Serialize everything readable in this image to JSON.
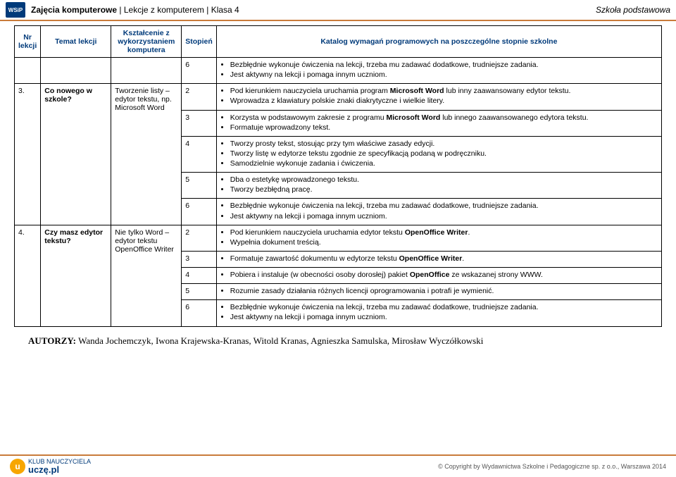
{
  "header": {
    "logo_text": "WSiP",
    "left_bold": "Zajęcia komputerowe",
    "sep": " | ",
    "mid": "Lekcje z komputerem",
    "right_part": "Klasa 4",
    "school": "Szkoła podstawowa"
  },
  "table": {
    "headers": {
      "nr": "Nr lekcji",
      "temat": "Temat lekcji",
      "kszt": "Kształcenie z wykorzystaniem komputera",
      "stopien": "Stopień",
      "katalog": "Katalog wymagań programowych na poszczególne stopnie szkolne"
    },
    "rows": [
      {
        "nr": "",
        "temat": "",
        "kszt": "",
        "levels": [
          {
            "stop": "6",
            "items": [
              "Bezbłędnie wykonuje ćwiczenia na lekcji, trzeba mu zadawać dodatkowe, trudniejsze zadania.",
              "Jest aktywny na lekcji i pomaga innym uczniom."
            ]
          }
        ]
      },
      {
        "nr": "3.",
        "temat": "Co nowego w szkole?",
        "kszt": "Tworzenie listy – edytor tekstu, np. Microsoft Word",
        "levels": [
          {
            "stop": "2",
            "items": [
              {
                "pre": "Pod kierunkiem nauczyciela uruchamia program ",
                "bold": "Microsoft Word",
                "post": " lub inny zaawansowany edytor tekstu."
              },
              "Wprowadza z klawiatury polskie znaki diakrytyczne i wielkie litery."
            ]
          },
          {
            "stop": "3",
            "items": [
              {
                "pre": "Korzysta w podstawowym zakresie z programu ",
                "bold": "Microsoft Word",
                "post": " lub innego zaawansowanego edytora tekstu."
              },
              "Formatuje wprowadzony tekst."
            ]
          },
          {
            "stop": "4",
            "items": [
              "Tworzy prosty tekst, stosując przy tym właściwe zasady edycji.",
              "Tworzy listę w edytorze tekstu zgodnie ze specyfikacją podaną w podręczniku.",
              "Samodzielnie wykonuje zadania i ćwiczenia."
            ]
          },
          {
            "stop": "5",
            "items": [
              "Dba o estetykę wprowadzonego tekstu.",
              "Tworzy bezbłędną pracę."
            ]
          },
          {
            "stop": "6",
            "items": [
              "Bezbłędnie wykonuje ćwiczenia na lekcji, trzeba mu zadawać dodatkowe, trudniejsze zadania.",
              "Jest aktywny na lekcji i pomaga innym uczniom."
            ]
          }
        ]
      },
      {
        "nr": "4.",
        "temat": "Czy masz edytor tekstu?",
        "kszt": "Nie tylko Word – edytor tekstu OpenOffice Writer",
        "levels": [
          {
            "stop": "2",
            "items": [
              {
                "pre": "Pod kierunkiem nauczyciela uruchamia edytor tekstu ",
                "bold": "OpenOffice Writer",
                "post": "."
              },
              "Wypełnia dokument treścią."
            ]
          },
          {
            "stop": "3",
            "items": [
              {
                "pre": "Formatuje zawartość dokumentu w edytorze tekstu ",
                "bold": "OpenOffice Writer",
                "post": "."
              }
            ]
          },
          {
            "stop": "4",
            "items": [
              {
                "pre": "Pobiera i instaluje (w obecności osoby dorosłej) pakiet ",
                "bold": "OpenOffice",
                "post": " ze wskazanej strony WWW."
              }
            ]
          },
          {
            "stop": "5",
            "items": [
              "Rozumie zasady działania różnych licencji oprogramowania i potrafi je wymienić."
            ]
          },
          {
            "stop": "6",
            "items": [
              "Bezbłędnie wykonuje ćwiczenia na lekcji, trzeba mu zadawać dodatkowe, trudniejsze zadania.",
              "Jest aktywny na lekcji i pomaga innym uczniom."
            ]
          }
        ]
      }
    ]
  },
  "authors": {
    "label": "AUTORZY: ",
    "names": "Wanda Jochemczyk, Iwona Krajewska-Kranas, Witold Kranas, Agnieszka Samulska, Mirosław Wyczółkowski"
  },
  "footer": {
    "icon_text": "u",
    "line1": "KLUB NAUCZYCIELA",
    "line2": "uczę.pl",
    "copy": "© Copyright by Wydawnictwa Szkolne i Pedagogiczne sp. z o.o., Warszawa 2014"
  }
}
